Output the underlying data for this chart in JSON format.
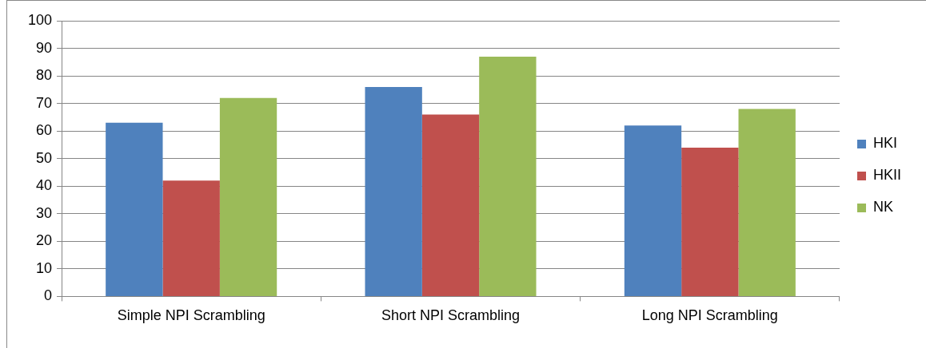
{
  "chart_data": {
    "type": "bar",
    "categories": [
      "Simple NPI Scrambling",
      "Short NPI Scrambling",
      "Long NPI Scrambling"
    ],
    "series": [
      {
        "name": "HKI",
        "color": "#4f81bd",
        "values": [
          63,
          76,
          62
        ]
      },
      {
        "name": "HKII",
        "color": "#c0504d",
        "values": [
          42,
          66,
          54
        ]
      },
      {
        "name": "NK",
        "color": "#9bbb59",
        "values": [
          72,
          87,
          68
        ]
      }
    ],
    "ylim": [
      0,
      100
    ],
    "yticks": [
      0,
      10,
      20,
      30,
      40,
      50,
      60,
      70,
      80,
      90,
      100
    ],
    "grid": "y",
    "legend": "right"
  }
}
